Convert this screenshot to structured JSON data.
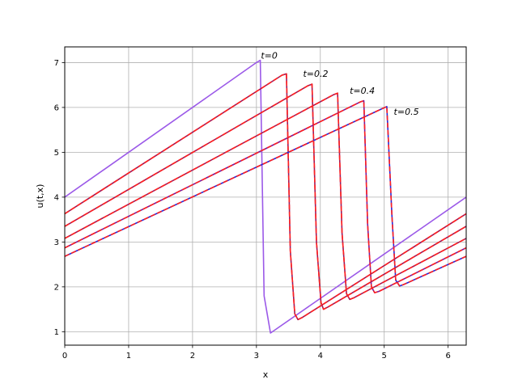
{
  "chart_data": {
    "type": "line",
    "title": "",
    "xlabel": "x",
    "ylabel": "u(t,x)",
    "xlim": [
      0,
      6.283
    ],
    "ylim": [
      0.7,
      7.35
    ],
    "xticks": [
      "0",
      "1",
      "2",
      "3",
      "4",
      "5",
      "6"
    ],
    "yticks": [
      "1",
      "2",
      "3",
      "4",
      "5",
      "6",
      "7"
    ],
    "grid": true,
    "annotations": [
      {
        "text": "t=0",
        "x": 3.07,
        "y": 7.05
      },
      {
        "text": "t=0.2",
        "x": 3.73,
        "y": 6.65
      },
      {
        "text": "t=0.4",
        "x": 4.46,
        "y": 6.27
      },
      {
        "text": "t=0.5",
        "x": 5.15,
        "y": 5.8
      }
    ],
    "series": [
      {
        "role": "initial",
        "color": "#9b59e8",
        "dashed": false,
        "x": [
          0,
          3.0,
          3.06,
          3.12,
          3.22,
          3.3,
          6.283
        ],
        "y": [
          4.0,
          7.0,
          7.05,
          1.8,
          0.97,
          1.05,
          4.0
        ]
      },
      {
        "role": "solution",
        "color": "#a01858",
        "dashed": false,
        "x": [
          0,
          3.4,
          3.47,
          3.53,
          3.6,
          3.65,
          3.72,
          6.283
        ],
        "y": [
          3.63,
          6.72,
          6.75,
          2.8,
          1.4,
          1.27,
          1.32,
          3.63
        ]
      },
      {
        "role": "solution",
        "color": "#a01858",
        "dashed": false,
        "x": [
          0,
          3.8,
          3.87,
          3.94,
          4.01,
          4.05,
          4.12,
          6.283
        ],
        "y": [
          3.35,
          6.48,
          6.52,
          3.0,
          1.65,
          1.5,
          1.55,
          3.35
        ]
      },
      {
        "role": "solution",
        "color": "#a01858",
        "dashed": false,
        "x": [
          0,
          4.2,
          4.27,
          4.34,
          4.41,
          4.46,
          4.53,
          6.283
        ],
        "y": [
          3.08,
          6.28,
          6.32,
          3.2,
          1.85,
          1.72,
          1.76,
          3.08
        ]
      },
      {
        "role": "solution",
        "color": "#7a1a9c",
        "dashed": false,
        "x": [
          0,
          4.62,
          4.68,
          4.74,
          4.8,
          4.85,
          4.92,
          6.283
        ],
        "y": [
          2.87,
          6.12,
          6.15,
          3.4,
          2.0,
          1.87,
          1.9,
          2.87
        ]
      },
      {
        "role": "solution",
        "color": "#2828d8",
        "dashed": false,
        "x": [
          0,
          4.98,
          5.04,
          5.12,
          5.18,
          5.24,
          5.3,
          6.283
        ],
        "y": [
          2.68,
          5.98,
          6.02,
          3.6,
          2.15,
          2.02,
          2.05,
          2.68
        ]
      },
      {
        "role": "reference",
        "color": "#ff2020",
        "dashed": true,
        "x": [
          0,
          3.4,
          3.47,
          3.53,
          3.6,
          3.65,
          3.72,
          6.283
        ],
        "y": [
          3.63,
          6.72,
          6.75,
          2.8,
          1.4,
          1.27,
          1.32,
          3.63
        ]
      },
      {
        "role": "reference",
        "color": "#ff2020",
        "dashed": true,
        "x": [
          0,
          3.8,
          3.87,
          3.94,
          4.01,
          4.05,
          4.12,
          6.283
        ],
        "y": [
          3.35,
          6.48,
          6.52,
          3.0,
          1.65,
          1.5,
          1.55,
          3.35
        ]
      },
      {
        "role": "reference",
        "color": "#ff2020",
        "dashed": true,
        "x": [
          0,
          4.2,
          4.27,
          4.34,
          4.41,
          4.46,
          4.53,
          6.283
        ],
        "y": [
          3.08,
          6.28,
          6.32,
          3.2,
          1.85,
          1.72,
          1.76,
          3.08
        ]
      },
      {
        "role": "reference",
        "color": "#ff2020",
        "dashed": true,
        "x": [
          0,
          4.62,
          4.68,
          4.74,
          4.8,
          4.85,
          4.92,
          6.283
        ],
        "y": [
          2.87,
          6.12,
          6.15,
          3.4,
          2.0,
          1.87,
          1.9,
          2.87
        ]
      },
      {
        "role": "reference",
        "color": "#ff2020",
        "dashed": true,
        "x": [
          0,
          4.98,
          5.04,
          5.12,
          5.18,
          5.24,
          5.3,
          6.283
        ],
        "y": [
          2.68,
          5.98,
          6.02,
          3.6,
          2.15,
          2.02,
          2.05,
          2.68
        ]
      }
    ]
  }
}
